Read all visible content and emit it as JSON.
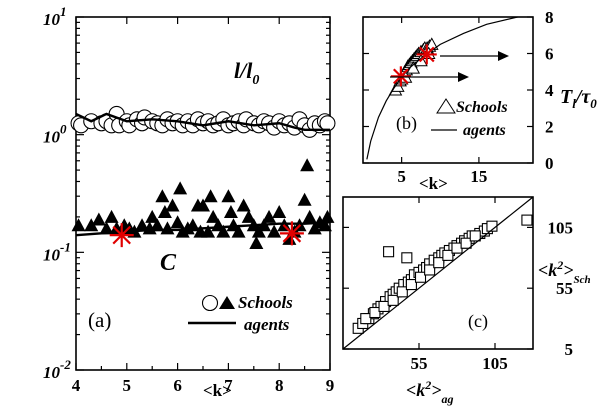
{
  "chart_data": [
    {
      "panel": "(a)",
      "type": "scatter",
      "xlabel": "<k>",
      "xlim": [
        4,
        9
      ],
      "yscale": "log",
      "ylim": [
        0.01,
        10
      ],
      "x_ticks": [
        "4",
        "5",
        "6",
        "7",
        "8",
        "9"
      ],
      "y_ticks": [
        {
          "base": "10",
          "exp": "-2",
          "value": 0.01
        },
        {
          "base": "10",
          "exp": "-1",
          "value": 0.1
        },
        {
          "base": "10",
          "exp": "0",
          "value": 1
        },
        {
          "base": "10",
          "exp": "1",
          "value": 10
        }
      ],
      "series_labels": {
        "l": "l/l",
        "l_sub": "0",
        "c": "C"
      },
      "legend": {
        "schools": "Schools",
        "agents": "agents",
        "position": "bottom-right"
      },
      "series": [
        {
          "name": "l/l0 Schools",
          "marker": "open-circle",
          "points": [
            [
              4.05,
              1.25
            ],
            [
              4.1,
              1.2
            ],
            [
              4.3,
              1.3
            ],
            [
              4.5,
              1.25
            ],
            [
              4.6,
              1.3
            ],
            [
              4.7,
              1.2
            ],
            [
              4.8,
              1.5
            ],
            [
              4.85,
              1.2
            ],
            [
              5.0,
              1.3
            ],
            [
              5.05,
              1.2
            ],
            [
              5.2,
              1.35
            ],
            [
              5.3,
              1.25
            ],
            [
              5.35,
              1.4
            ],
            [
              5.5,
              1.3
            ],
            [
              5.6,
              1.25
            ],
            [
              5.7,
              1.2
            ],
            [
              5.8,
              1.35
            ],
            [
              5.9,
              1.25
            ],
            [
              6.0,
              1.3
            ],
            [
              6.1,
              1.2
            ],
            [
              6.2,
              1.3
            ],
            [
              6.3,
              1.2
            ],
            [
              6.4,
              1.35
            ],
            [
              6.5,
              1.25
            ],
            [
              6.6,
              1.3
            ],
            [
              6.7,
              1.2
            ],
            [
              6.8,
              1.25
            ],
            [
              6.9,
              1.35
            ],
            [
              7.0,
              1.2
            ],
            [
              7.1,
              1.25
            ],
            [
              7.2,
              1.3
            ],
            [
              7.3,
              1.2
            ],
            [
              7.35,
              1.35
            ],
            [
              7.5,
              1.25
            ],
            [
              7.6,
              1.2
            ],
            [
              7.7,
              1.3
            ],
            [
              7.8,
              1.25
            ],
            [
              7.9,
              1.15
            ],
            [
              8.0,
              1.3
            ],
            [
              8.1,
              1.2
            ],
            [
              8.2,
              1.25
            ],
            [
              8.3,
              1.15
            ],
            [
              8.4,
              1.35
            ],
            [
              8.5,
              1.2
            ],
            [
              8.6,
              1.1
            ],
            [
              8.7,
              1.25
            ],
            [
              8.8,
              1.2
            ],
            [
              8.9,
              1.3
            ],
            [
              8.95,
              1.25
            ]
          ]
        },
        {
          "name": "l/l0 agents",
          "marker": "line",
          "points": [
            [
              4.0,
              1.5
            ],
            [
              4.3,
              1.3
            ],
            [
              4.6,
              1.5
            ],
            [
              5.0,
              1.3
            ],
            [
              5.5,
              1.35
            ],
            [
              6.0,
              1.3
            ],
            [
              6.5,
              1.2
            ],
            [
              7.0,
              1.3
            ],
            [
              7.5,
              1.2
            ],
            [
              8.0,
              1.25
            ],
            [
              8.3,
              1.15
            ],
            [
              8.5,
              1.1
            ],
            [
              9.0,
              1.1
            ]
          ]
        },
        {
          "name": "C Schools",
          "marker": "filled-triangle",
          "points": [
            [
              4.05,
              0.17
            ],
            [
              4.3,
              0.17
            ],
            [
              4.45,
              0.19
            ],
            [
              4.6,
              0.16
            ],
            [
              4.7,
              0.2
            ],
            [
              4.8,
              0.16
            ],
            [
              4.95,
              0.17
            ],
            [
              5.05,
              0.16
            ],
            [
              5.15,
              0.15
            ],
            [
              5.3,
              0.17
            ],
            [
              5.45,
              0.16
            ],
            [
              5.5,
              0.2
            ],
            [
              5.6,
              0.17
            ],
            [
              5.7,
              0.3
            ],
            [
              5.75,
              0.22
            ],
            [
              5.8,
              0.16
            ],
            [
              5.9,
              0.25
            ],
            [
              6.0,
              0.18
            ],
            [
              6.05,
              0.35
            ],
            [
              6.1,
              0.15
            ],
            [
              6.2,
              0.16
            ],
            [
              6.3,
              0.17
            ],
            [
              6.4,
              0.25
            ],
            [
              6.45,
              0.15
            ],
            [
              6.5,
              0.25
            ],
            [
              6.6,
              0.15
            ],
            [
              6.65,
              0.3
            ],
            [
              6.7,
              0.2
            ],
            [
              6.8,
              0.17
            ],
            [
              6.9,
              0.15
            ],
            [
              7.0,
              0.3
            ],
            [
              7.05,
              0.22
            ],
            [
              7.1,
              0.17
            ],
            [
              7.2,
              0.15
            ],
            [
              7.3,
              0.25
            ],
            [
              7.4,
              0.2
            ],
            [
              7.5,
              0.17
            ],
            [
              7.55,
              0.12
            ],
            [
              7.6,
              0.15
            ],
            [
              7.7,
              0.17
            ],
            [
              7.8,
              0.2
            ],
            [
              7.9,
              0.15
            ],
            [
              8.0,
              0.22
            ],
            [
              8.1,
              0.17
            ],
            [
              8.2,
              0.13
            ],
            [
              8.3,
              0.15
            ],
            [
              8.4,
              0.17
            ],
            [
              8.5,
              0.28
            ],
            [
              8.55,
              0.55
            ],
            [
              8.6,
              0.2
            ],
            [
              8.7,
              0.16
            ],
            [
              8.8,
              0.18
            ],
            [
              8.9,
              0.17
            ],
            [
              8.95,
              0.2
            ]
          ]
        },
        {
          "name": "C agents",
          "marker": "line",
          "points": [
            [
              4.0,
              0.14
            ],
            [
              4.5,
              0.145
            ],
            [
              5.0,
              0.15
            ],
            [
              5.5,
              0.155
            ],
            [
              6.0,
              0.155
            ],
            [
              6.5,
              0.16
            ],
            [
              7.0,
              0.165
            ],
            [
              7.5,
              0.17
            ],
            [
              8.0,
              0.175
            ],
            [
              8.5,
              0.175
            ],
            [
              9.0,
              0.18
            ]
          ]
        },
        {
          "name": "highlighted",
          "marker": "red-star",
          "points": [
            [
              4.9,
              0.14
            ],
            [
              8.25,
              0.145
            ]
          ]
        }
      ],
      "panel_label": "(a)"
    },
    {
      "panel": "(b)",
      "type": "scatter",
      "xlabel": "<k>",
      "xlim": [
        0,
        22
      ],
      "ylim": [
        0,
        8
      ],
      "x_ticks": [
        "5",
        "15"
      ],
      "x_tick_values": [
        5,
        15
      ],
      "y_ticks": [
        "0",
        "2",
        "4",
        "6",
        "8"
      ],
      "ylabel": {
        "main": "T",
        "sub1": "l",
        "slash": "/τ",
        "sub2": "0"
      },
      "legend": {
        "schools": "Schools",
        "agents": "agents"
      },
      "series": [
        {
          "name": "Schools",
          "marker": "open-triangle",
          "points": [
            [
              4.2,
              4.0
            ],
            [
              4.5,
              4.2
            ],
            [
              4.8,
              4.5
            ],
            [
              5.0,
              4.6
            ],
            [
              5.2,
              4.8
            ],
            [
              5.4,
              5.0
            ],
            [
              5.6,
              5.1
            ],
            [
              5.8,
              5.3
            ],
            [
              6.0,
              5.4
            ],
            [
              6.2,
              5.5
            ],
            [
              6.4,
              5.6
            ],
            [
              6.6,
              5.7
            ],
            [
              6.8,
              5.8
            ],
            [
              7.0,
              5.9
            ],
            [
              7.2,
              6.0
            ],
            [
              7.5,
              6.1
            ],
            [
              7.8,
              6.2
            ],
            [
              8.0,
              6.3
            ],
            [
              8.3,
              6.3
            ],
            [
              8.6,
              6.4
            ],
            [
              8.9,
              6.5
            ],
            [
              5.5,
              4.7
            ],
            [
              6.5,
              5.2
            ],
            [
              7.5,
              5.6
            ],
            [
              8.5,
              6.0
            ]
          ]
        },
        {
          "name": "agents",
          "marker": "line",
          "points": [
            [
              0.5,
              0.2
            ],
            [
              1,
              1.2
            ],
            [
              2,
              2.5
            ],
            [
              3,
              3.4
            ],
            [
              4,
              4.1
            ],
            [
              5,
              4.7
            ],
            [
              6,
              5.2
            ],
            [
              8,
              5.9
            ],
            [
              10,
              6.5
            ],
            [
              13,
              7.1
            ],
            [
              16,
              7.6
            ],
            [
              20,
              8.0
            ]
          ]
        },
        {
          "name": "highlighted",
          "marker": "red-star",
          "points": [
            [
              4.9,
              4.75
            ],
            [
              8.25,
              5.95
            ]
          ]
        }
      ],
      "panel_label": "(b)"
    },
    {
      "panel": "(c)",
      "type": "scatter",
      "xlabel": {
        "main": "<k",
        "sup": "2",
        "tail": ">",
        "sub": "ag"
      },
      "ylabel": {
        "main": "<k",
        "sup": "2",
        "tail": ">",
        "sub": "Sch"
      },
      "xlim": [
        5,
        130
      ],
      "ylim": [
        5,
        130
      ],
      "x_ticks": [
        "55",
        "105"
      ],
      "x_tick_values": [
        55,
        105
      ],
      "y_ticks": [
        "5",
        "55",
        "105"
      ],
      "y_tick_values": [
        5,
        55,
        105
      ],
      "series": [
        {
          "name": "Schools",
          "marker": "open-square",
          "points": [
            [
              15,
              22
            ],
            [
              18,
              26
            ],
            [
              22,
              30
            ],
            [
              25,
              34
            ],
            [
              28,
              38
            ],
            [
              30,
              40
            ],
            [
              33,
              44
            ],
            [
              36,
              48
            ],
            [
              38,
              50
            ],
            [
              40,
              52
            ],
            [
              42,
              55
            ],
            [
              45,
              58
            ],
            [
              48,
              60
            ],
            [
              50,
              62
            ],
            [
              52,
              66
            ],
            [
              55,
              68
            ],
            [
              58,
              70
            ],
            [
              60,
              72
            ],
            [
              62,
              75
            ],
            [
              65,
              78
            ],
            [
              68,
              80
            ],
            [
              70,
              82
            ],
            [
              72,
              84
            ],
            [
              75,
              86
            ],
            [
              78,
              88
            ],
            [
              80,
              90
            ],
            [
              83,
              92
            ],
            [
              85,
              94
            ],
            [
              88,
              96
            ],
            [
              90,
              98
            ],
            [
              95,
              100
            ],
            [
              98,
              102
            ],
            [
              100,
              104
            ],
            [
              103,
              106
            ],
            [
              20,
              30
            ],
            [
              26,
              35
            ],
            [
              32,
              40
            ],
            [
              38,
              45
            ],
            [
              44,
              52
            ],
            [
              50,
              58
            ],
            [
              56,
              64
            ],
            [
              62,
              70
            ],
            [
              68,
              76
            ],
            [
              74,
              82
            ],
            [
              80,
              88
            ],
            [
              86,
              92
            ],
            [
              92,
              98
            ],
            [
              35,
              85
            ],
            [
              47,
              80
            ],
            [
              126,
              111
            ]
          ]
        },
        {
          "name": "agents",
          "marker": "line",
          "points": [
            [
              5,
              5
            ],
            [
              130,
              130
            ]
          ]
        }
      ],
      "panel_label": "(c)"
    }
  ]
}
